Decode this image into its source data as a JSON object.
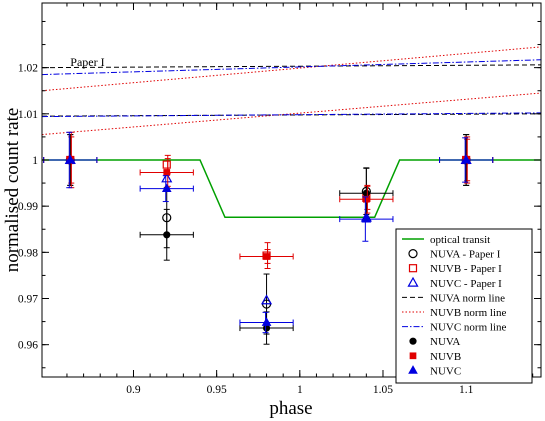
{
  "chart_data": {
    "type": "scatter",
    "xlabel": "phase",
    "ylabel": "normalised count rate",
    "xlim": [
      0.845,
      1.145
    ],
    "ylim": [
      0.953,
      1.034
    ],
    "x_ticks": [
      0.9,
      0.95,
      1.0,
      1.05,
      1.1
    ],
    "x_tick_labels": [
      "0.9",
      "0.95",
      "1",
      "1.05",
      "1.1"
    ],
    "y_ticks": [
      0.96,
      0.97,
      0.98,
      0.99,
      1.0,
      1.01,
      1.02
    ],
    "y_tick_labels": [
      "0.96",
      "0.97",
      "0.98",
      "0.99",
      "1",
      "1.01",
      "1.02"
    ],
    "grid": false,
    "legend_position": "bottom-right",
    "annotations": [
      {
        "text": "Paper I",
        "x": 0.862,
        "y": 1.0204
      }
    ],
    "series": [
      {
        "name": "optical transit",
        "kind": "line",
        "color": "#00a000",
        "dash": "solid",
        "x": [
          0.845,
          0.94,
          0.955,
          1.045,
          1.06,
          1.145
        ],
        "y": [
          1.0,
          1.0,
          0.9876,
          0.9876,
          1.0,
          1.0
        ]
      },
      {
        "name": "NUVA - Paper I",
        "kind": "points",
        "marker": "circle-open",
        "color": "#000000",
        "x": [
          0.862,
          0.92,
          0.98,
          1.04,
          1.1
        ],
        "y": [
          1.0,
          0.9875,
          0.9688,
          0.9932,
          1.0
        ],
        "yerr": [
          0.0055,
          0.0065,
          0.0065,
          0.005,
          0.0055
        ],
        "xerr": [
          0,
          0,
          0,
          0,
          0
        ]
      },
      {
        "name": "NUVB - Paper I",
        "kind": "points",
        "marker": "square-open",
        "color": "#e00000",
        "x": [
          0.862,
          0.92,
          0.98,
          1.04,
          1.1
        ],
        "y": [
          1.0,
          0.999,
          0.9793,
          0.9918,
          1.0
        ],
        "yerr": [
          0.005,
          0.002,
          0.0028,
          0.0025,
          0.0045
        ],
        "xerr": [
          0,
          0,
          0,
          0,
          0
        ]
      },
      {
        "name": "NUVC - Paper I",
        "kind": "points",
        "marker": "triangle-open",
        "color": "#0000e0",
        "x": [
          0.862,
          0.92,
          0.98,
          1.04,
          1.1
        ],
        "y": [
          1.0,
          0.996,
          0.9696,
          0.9875,
          1.0
        ],
        "yerr": [
          0,
          0,
          0,
          0,
          0
        ],
        "xerr": [
          0,
          0,
          0,
          0,
          0
        ]
      },
      {
        "name": "NUVA norm line",
        "kind": "line",
        "color": "#000000",
        "dash": "dashed",
        "x": [
          0.845,
          1.145
        ],
        "y": [
          1.02,
          1.0206
        ]
      },
      {
        "name": "NUVA norm line",
        "kind": "line",
        "color": "#000000",
        "dash": "dashed",
        "x": [
          0.845,
          1.145
        ],
        "y": [
          1.0095,
          1.01
        ]
      },
      {
        "name": "NUVB norm line",
        "kind": "line",
        "color": "#e00000",
        "dash": "dotted",
        "x": [
          0.845,
          1.145
        ],
        "y": [
          1.015,
          1.0245
        ]
      },
      {
        "name": "NUVB norm line",
        "kind": "line",
        "color": "#e00000",
        "dash": "dotted",
        "x": [
          0.845,
          1.145
        ],
        "y": [
          1.0055,
          1.0145
        ]
      },
      {
        "name": "NUVC norm line",
        "kind": "line",
        "color": "#0000e0",
        "dash": "dashdot",
        "x": [
          0.845,
          1.145
        ],
        "y": [
          1.0185,
          1.0217
        ]
      },
      {
        "name": "NUVC norm line",
        "kind": "line",
        "color": "#0000e0",
        "dash": "dashdot",
        "x": [
          0.845,
          1.145
        ],
        "y": [
          1.0094,
          1.0102
        ]
      },
      {
        "name": "NUVA",
        "kind": "points",
        "marker": "circle-filled",
        "color": "#000000",
        "x": [
          0.862,
          0.92,
          0.98,
          1.04,
          1.1
        ],
        "y": [
          1.0,
          0.9838,
          0.9636,
          0.9928,
          1.0
        ],
        "yerr": [
          0.0055,
          0.0055,
          0.0035,
          0.0055,
          0.0055
        ],
        "xerr": [
          0.016,
          0.016,
          0.016,
          0.016,
          0.016
        ]
      },
      {
        "name": "NUVB",
        "kind": "points",
        "marker": "square-filled",
        "color": "#e00000",
        "x": [
          0.862,
          0.92,
          0.98,
          1.04,
          1.1
        ],
        "y": [
          1.0,
          0.9973,
          0.9791,
          0.9915,
          1.0
        ],
        "yerr": [
          0.006,
          0.003,
          0.0015,
          0.003,
          0.005
        ],
        "xerr": [
          0.016,
          0.016,
          0.016,
          0.016,
          0.016
        ]
      },
      {
        "name": "NUVC",
        "kind": "points",
        "marker": "triangle-filled",
        "color": "#0000e0",
        "x": [
          0.862,
          0.92,
          0.98,
          1.04,
          1.1
        ],
        "y": [
          1.0,
          0.9938,
          0.9648,
          0.9872,
          1.0
        ],
        "yerr": [
          0.006,
          0.0028,
          0.0022,
          0.0048,
          0.0048
        ],
        "xerr": [
          0.016,
          0.016,
          0.016,
          0.016,
          0.016
        ]
      }
    ],
    "legend": [
      {
        "label": "optical transit",
        "symbol": "line",
        "color": "#00a000",
        "dash": "solid"
      },
      {
        "label": "NUVA - Paper I",
        "symbol": "circle-open",
        "color": "#000000"
      },
      {
        "label": "NUVB - Paper I",
        "symbol": "square-open",
        "color": "#e00000"
      },
      {
        "label": "NUVC - Paper I",
        "symbol": "triangle-open",
        "color": "#0000e0"
      },
      {
        "label": "NUVA norm line",
        "symbol": "line",
        "color": "#000000",
        "dash": "dashed"
      },
      {
        "label": "NUVB norm line",
        "symbol": "line",
        "color": "#e00000",
        "dash": "dotted"
      },
      {
        "label": "NUVC norm line",
        "symbol": "line",
        "color": "#0000e0",
        "dash": "dashdot"
      },
      {
        "label": "NUVA",
        "symbol": "circle-filled",
        "color": "#000000"
      },
      {
        "label": "NUVB",
        "symbol": "square-filled",
        "color": "#e00000"
      },
      {
        "label": "NUVC",
        "symbol": "triangle-filled",
        "color": "#0000e0"
      }
    ]
  }
}
